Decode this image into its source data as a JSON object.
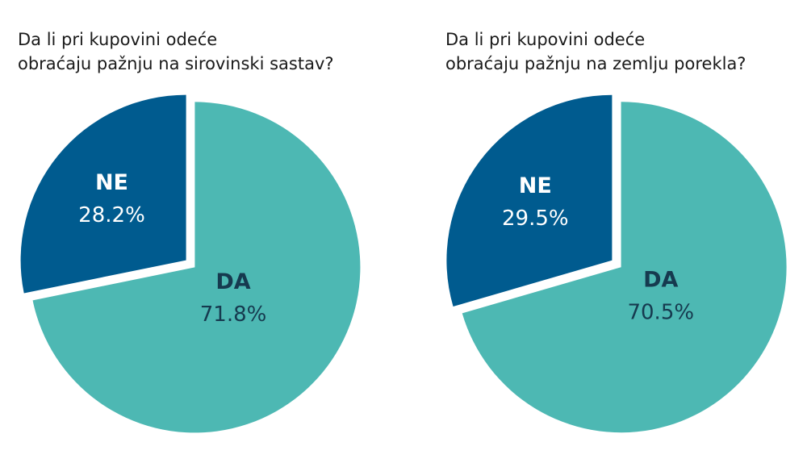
{
  "chart_data": [
    {
      "type": "pie",
      "title": [
        "Da li pri kupovini odeće",
        "obraćaju pažnju na sirovinski sastav?"
      ],
      "categories": [
        "DA",
        "NE"
      ],
      "values": [
        71.8,
        28.2
      ],
      "value_labels": [
        "71.8%",
        "28.2%"
      ],
      "colors": [
        "#4db8b3",
        "#005b8f"
      ]
    },
    {
      "type": "pie",
      "title": [
        "Da li pri kupovini odeće",
        "obraćaju pažnju na zemlju porekla?"
      ],
      "categories": [
        "DA",
        "NE"
      ],
      "values": [
        70.5,
        29.5
      ],
      "value_labels": [
        "70.5%",
        "29.5%"
      ],
      "colors": [
        "#4db8b3",
        "#005b8f"
      ]
    }
  ]
}
